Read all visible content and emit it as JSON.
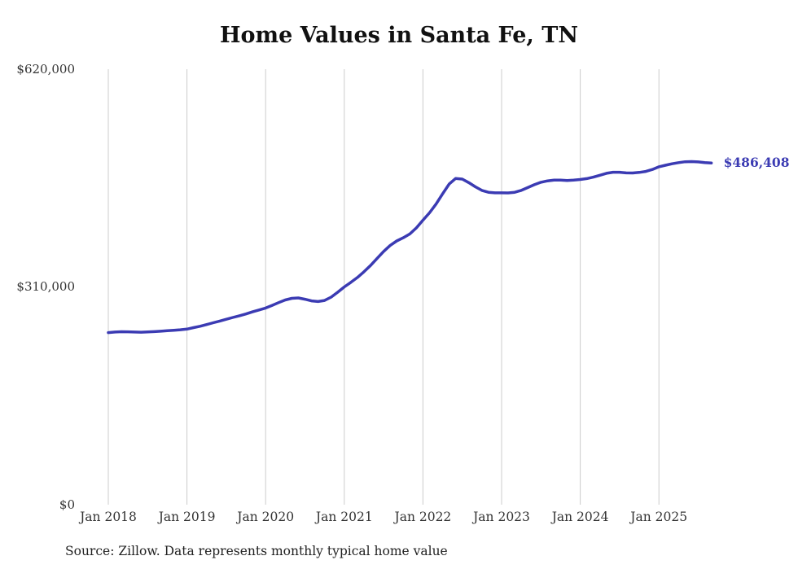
{
  "chart_data": {
    "type": "line",
    "title": "Home Values in Santa Fe, TN",
    "source": "Source: Zillow. Data represents monthly typical home value",
    "end_label": "$486,408",
    "end_value": 486408,
    "line_color": "#3b3bb3",
    "gridline_color": "#cccccc",
    "ylim": [
      0,
      620000
    ],
    "y_tick_values": [
      620000,
      310000,
      0
    ],
    "y_ticks": [
      "$620,000",
      "$310,000",
      "$0"
    ],
    "x_tick_labels": [
      "Jan 2018",
      "Jan 2019",
      "Jan 2020",
      "Jan 2021",
      "Jan 2022",
      "Jan 2023",
      "Jan 2024",
      "Jan 2025"
    ],
    "series_name": "Typical home value",
    "start_month": "2018-01",
    "frequency": "monthly",
    "values": [
      245000,
      245800,
      246300,
      246200,
      245800,
      245600,
      245900,
      246400,
      247000,
      247600,
      248300,
      249100,
      250000,
      252000,
      254000,
      256500,
      259000,
      261500,
      264000,
      266500,
      269000,
      271500,
      274500,
      277200,
      280000,
      283800,
      287800,
      291500,
      293800,
      294300,
      292500,
      290200,
      289200,
      290800,
      295500,
      302500,
      310000,
      316500,
      323500,
      331500,
      340500,
      350500,
      360500,
      369000,
      375500,
      380000,
      385500,
      394000,
      405000,
      415500,
      428000,
      442500,
      456500,
      464500,
      463500,
      458500,
      452500,
      447500,
      444800,
      444000,
      444000,
      443800,
      444800,
      447500,
      451500,
      455500,
      459000,
      461000,
      462000,
      462200,
      461500,
      462000,
      463000,
      464300,
      466300,
      469000,
      471800,
      473300,
      473300,
      472400,
      472200,
      473000,
      474500,
      477200,
      481000,
      483300,
      485300,
      487000,
      488200,
      488500,
      488000,
      487000,
      486408
    ]
  }
}
